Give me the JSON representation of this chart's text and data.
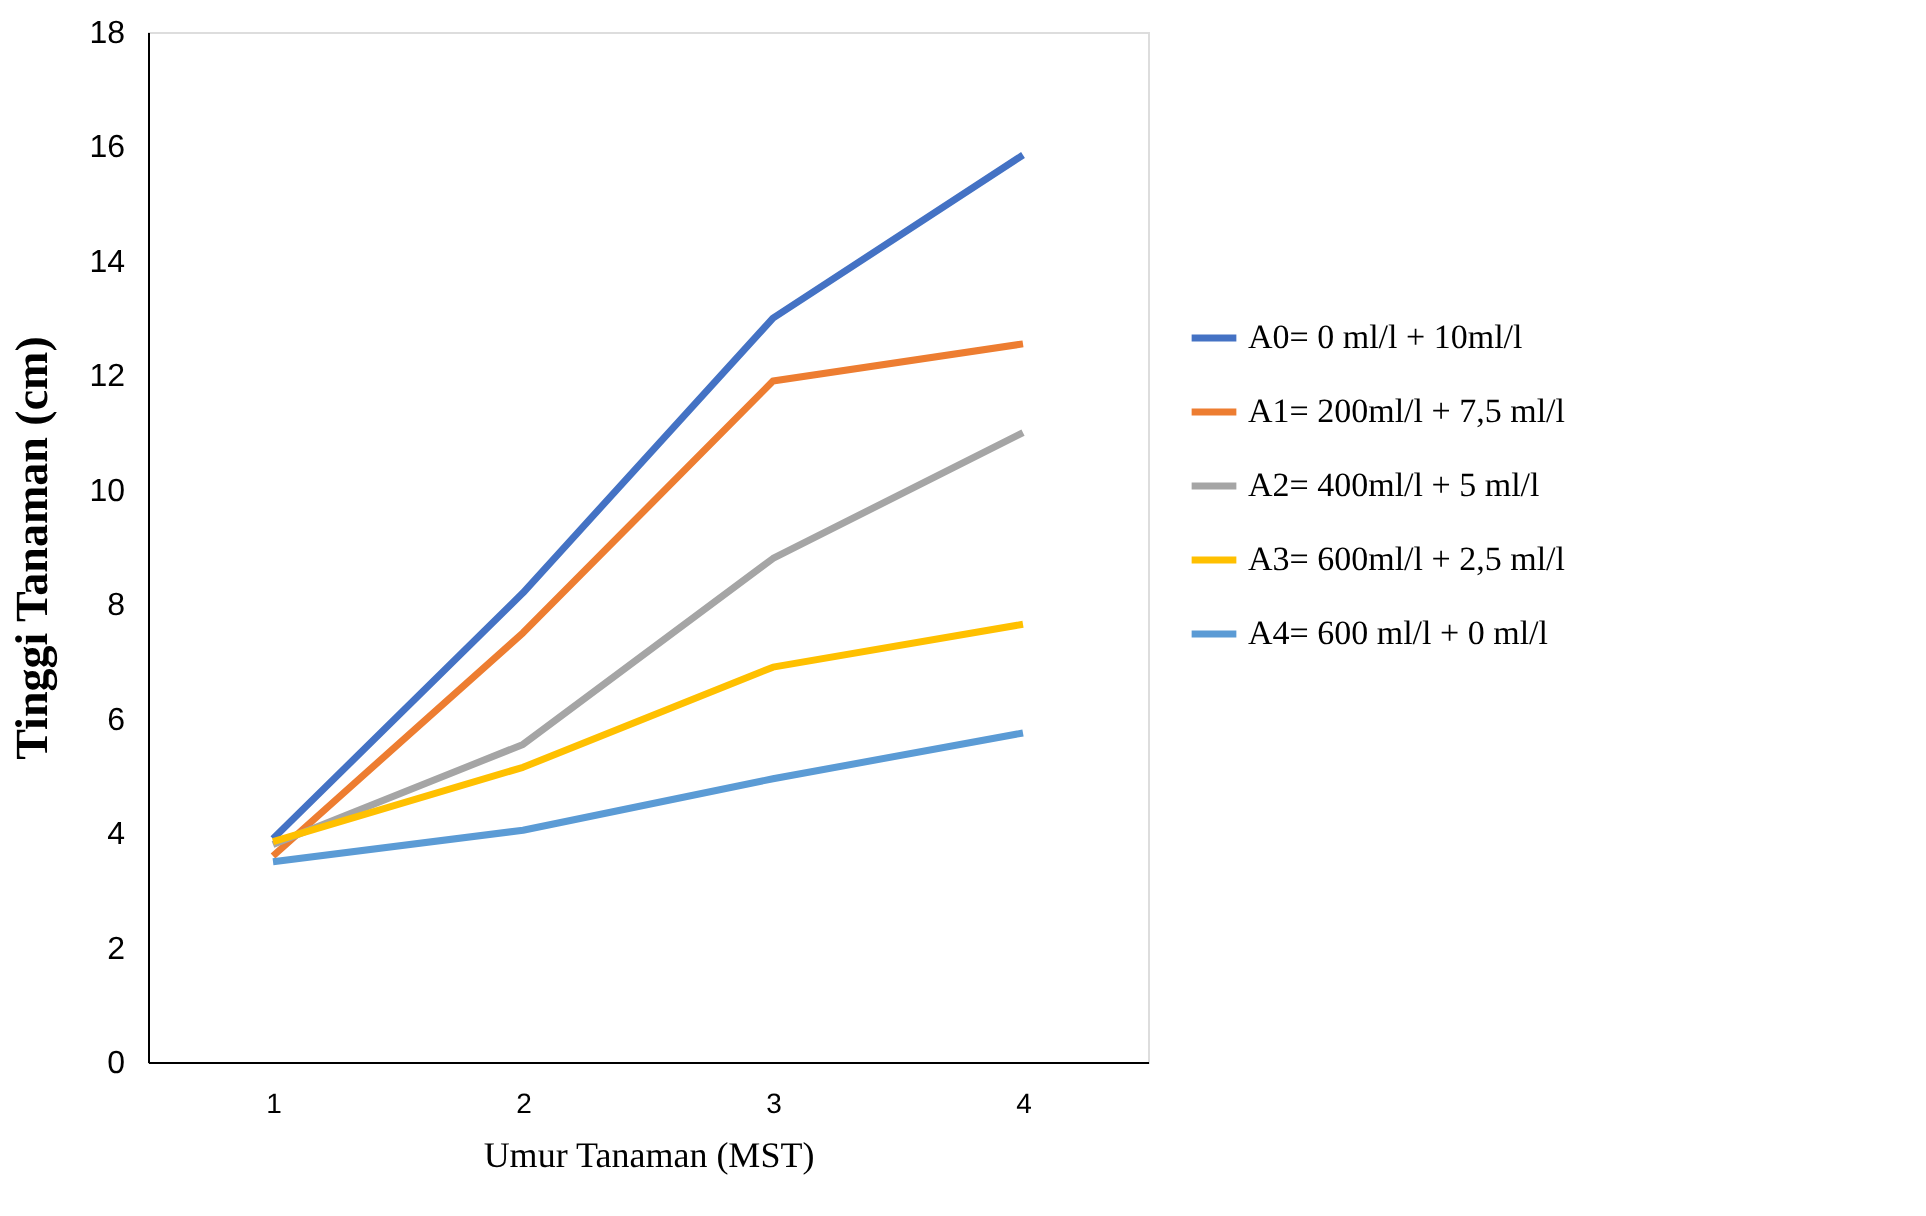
{
  "chart_data": {
    "type": "line",
    "xlabel": "Umur Tanaman (MST)",
    "ylabel": "Tinggi Tanaman (cm)",
    "categories": [
      "1",
      "2",
      "3",
      "4"
    ],
    "ylim": [
      0,
      18
    ],
    "yticks": [
      0,
      2,
      4,
      6,
      8,
      10,
      12,
      14,
      16,
      18
    ],
    "grid": false,
    "legend": "right",
    "marker": "none",
    "line_style": "solid",
    "series": [
      {
        "name": "A0= 0 ml/l + 10ml/l",
        "color": "#4472c4",
        "values": [
          3.9,
          8.2,
          13.0,
          15.85
        ]
      },
      {
        "name": "A1= 200ml/l + 7,5 ml/l",
        "color": "#ed7d31",
        "values": [
          3.6,
          7.5,
          11.9,
          12.55
        ]
      },
      {
        "name": "A2= 400ml/l + 5 ml/l",
        "color": "#a5a5a5",
        "values": [
          3.8,
          5.55,
          8.8,
          11.0
        ]
      },
      {
        "name": "A3= 600ml/l + 2,5 ml/l",
        "color": "#ffc000",
        "values": [
          3.85,
          5.15,
          6.9,
          7.65
        ]
      },
      {
        "name": "A4= 600 ml/l + 0 ml/l",
        "color": "#5b9bd5",
        "values": [
          3.5,
          4.05,
          4.95,
          5.75
        ]
      }
    ]
  }
}
